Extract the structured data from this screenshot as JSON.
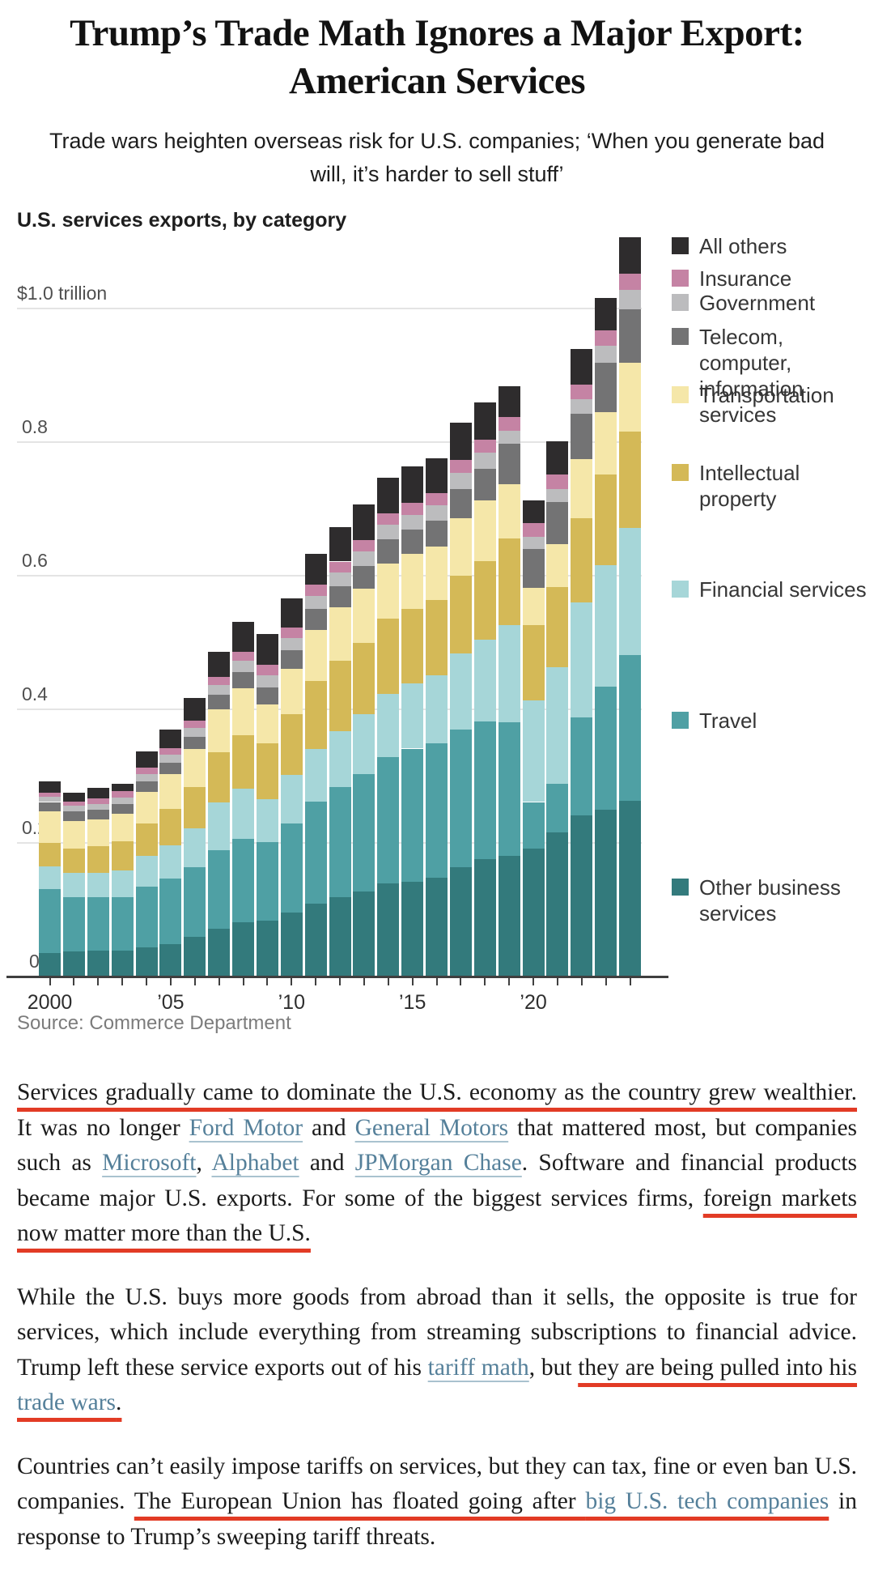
{
  "article": {
    "headline": "Trump’s Trade Math Ignores a Major Export: American Services",
    "subheadline": "Trade wars heighten overseas risk for U.S. companies; ‘When you generate bad will, it’s harder to sell stuff’",
    "paragraphs": [
      {
        "segments": [
          {
            "type": "red",
            "text": "Services gradually came to dominate the U.S. economy as the country grew wealthier."
          },
          {
            "type": "plain",
            "text": " It was no longer "
          },
          {
            "type": "link",
            "text": "Ford Motor"
          },
          {
            "type": "plain",
            "text": " and "
          },
          {
            "type": "link",
            "text": "General Motors"
          },
          {
            "type": "plain",
            "text": " that mattered most, but companies such as "
          },
          {
            "type": "link",
            "text": "Microsoft"
          },
          {
            "type": "plain",
            "text": ", "
          },
          {
            "type": "link",
            "text": "Alphabet"
          },
          {
            "type": "plain",
            "text": " and "
          },
          {
            "type": "link",
            "text": "JPMorgan Chase"
          },
          {
            "type": "plain",
            "text": ". Software and financial products became major U.S. exports. For some of the biggest services firms, "
          },
          {
            "type": "red",
            "text": "foreign markets now matter more than the U.S."
          }
        ]
      },
      {
        "segments": [
          {
            "type": "plain",
            "text": "While the U.S. buys more goods from abroad than it sells, the opposite is true for services, which include everything from streaming subscriptions to financial advice. Trump left these service exports out of his "
          },
          {
            "type": "link",
            "text": "tariff math"
          },
          {
            "type": "plain",
            "text": ", but "
          },
          {
            "type": "red",
            "text": "they are being pulled into his "
          },
          {
            "type": "red_link",
            "text": "trade wars"
          },
          {
            "type": "red",
            "text": "."
          }
        ]
      },
      {
        "segments": [
          {
            "type": "plain",
            "text": "Countries can’t easily impose tariffs on services, but they can tax, fine or even ban U.S. companies. "
          },
          {
            "type": "red",
            "text": "The European Union has floated going after "
          },
          {
            "type": "red_link",
            "text": "big U.S. tech companies"
          },
          {
            "type": "plain",
            "text": " in response to Trump’s sweeping tariff threats."
          }
        ]
      }
    ]
  },
  "chart_data": {
    "type": "bar",
    "stacked": true,
    "title": "U.S. services exports, by category",
    "source": "Source: Commerce Department",
    "unit": "trillions of U.S. dollars",
    "ylim": [
      0,
      1.15
    ],
    "grid": true,
    "legend_position": "right",
    "y_ticks": [
      {
        "v": 1.0,
        "label": "$1.0 trillion"
      },
      {
        "v": 0.8,
        "label": "0.8"
      },
      {
        "v": 0.6,
        "label": "0.6"
      },
      {
        "v": 0.4,
        "label": "0.4"
      },
      {
        "v": 0.2,
        "label": "0.2"
      },
      {
        "v": 0.0,
        "label": "0"
      }
    ],
    "x": [
      2000,
      2001,
      2002,
      2003,
      2004,
      2005,
      2006,
      2007,
      2008,
      2009,
      2010,
      2011,
      2012,
      2013,
      2014,
      2015,
      2016,
      2017,
      2018,
      2019,
      2020,
      2021,
      2022,
      2023,
      2024
    ],
    "x_tick_labels": [
      {
        "index": 0,
        "label": "2000"
      },
      {
        "index": 5,
        "label": "’05"
      },
      {
        "index": 10,
        "label": "’10"
      },
      {
        "index": 15,
        "label": "’15"
      },
      {
        "index": 20,
        "label": "’20"
      }
    ],
    "series": [
      {
        "name": "Other business services",
        "color": "#337a7c",
        "values": [
          0.034,
          0.036,
          0.037,
          0.038,
          0.043,
          0.047,
          0.058,
          0.07,
          0.08,
          0.082,
          0.095,
          0.108,
          0.118,
          0.126,
          0.138,
          0.141,
          0.147,
          0.162,
          0.175,
          0.18,
          0.19,
          0.215,
          0.24,
          0.248,
          0.262
        ]
      },
      {
        "name": "Travel",
        "color": "#4fa0a4",
        "values": [
          0.096,
          0.082,
          0.08,
          0.08,
          0.09,
          0.098,
          0.105,
          0.118,
          0.125,
          0.118,
          0.133,
          0.153,
          0.165,
          0.176,
          0.189,
          0.199,
          0.201,
          0.207,
          0.206,
          0.2,
          0.07,
          0.072,
          0.147,
          0.185,
          0.218
        ]
      },
      {
        "name": "Financial services",
        "color": "#a6d6d8",
        "values": [
          0.034,
          0.036,
          0.037,
          0.04,
          0.046,
          0.05,
          0.058,
          0.072,
          0.075,
          0.064,
          0.073,
          0.078,
          0.083,
          0.089,
          0.095,
          0.098,
          0.102,
          0.114,
          0.122,
          0.145,
          0.152,
          0.175,
          0.172,
          0.182,
          0.19
        ]
      },
      {
        "name": "Intellectual property",
        "color": "#d4b957",
        "values": [
          0.035,
          0.036,
          0.04,
          0.043,
          0.049,
          0.055,
          0.062,
          0.075,
          0.08,
          0.084,
          0.091,
          0.102,
          0.106,
          0.107,
          0.112,
          0.111,
          0.112,
          0.116,
          0.118,
          0.13,
          0.113,
          0.12,
          0.126,
          0.135,
          0.145
        ]
      },
      {
        "name": "Transportation",
        "color": "#f5e7a9",
        "values": [
          0.047,
          0.042,
          0.04,
          0.041,
          0.047,
          0.052,
          0.056,
          0.064,
          0.07,
          0.058,
          0.067,
          0.077,
          0.079,
          0.081,
          0.083,
          0.082,
          0.08,
          0.086,
          0.09,
          0.081,
          0.056,
          0.064,
          0.088,
          0.094,
          0.103
        ]
      },
      {
        "name": "Telecom, computer, information services",
        "color": "#737374",
        "values": [
          0.014,
          0.014,
          0.014,
          0.015,
          0.016,
          0.017,
          0.019,
          0.022,
          0.025,
          0.026,
          0.028,
          0.031,
          0.032,
          0.034,
          0.036,
          0.037,
          0.039,
          0.044,
          0.048,
          0.06,
          0.058,
          0.063,
          0.068,
          0.073,
          0.079
        ]
      },
      {
        "name": "Government",
        "color": "#bcbcbe",
        "values": [
          0.008,
          0.008,
          0.009,
          0.01,
          0.011,
          0.012,
          0.013,
          0.014,
          0.016,
          0.018,
          0.019,
          0.02,
          0.021,
          0.022,
          0.022,
          0.022,
          0.023,
          0.024,
          0.024,
          0.02,
          0.018,
          0.019,
          0.022,
          0.026,
          0.03
        ]
      },
      {
        "name": "Insurance",
        "color": "#c583a4",
        "values": [
          0.006,
          0.007,
          0.008,
          0.009,
          0.01,
          0.01,
          0.011,
          0.012,
          0.014,
          0.015,
          0.015,
          0.016,
          0.016,
          0.017,
          0.017,
          0.018,
          0.018,
          0.019,
          0.02,
          0.02,
          0.021,
          0.022,
          0.022,
          0.023,
          0.024
        ]
      },
      {
        "name": "All others",
        "color": "#2e2c2d",
        "values": [
          0.017,
          0.013,
          0.016,
          0.011,
          0.024,
          0.027,
          0.034,
          0.038,
          0.045,
          0.047,
          0.044,
          0.047,
          0.052,
          0.054,
          0.054,
          0.054,
          0.053,
          0.056,
          0.055,
          0.046,
          0.034,
          0.05,
          0.053,
          0.049,
          0.055
        ]
      }
    ],
    "legend": [
      {
        "label": "All others",
        "color": "#2e2c2d"
      },
      {
        "label": "Insurance",
        "color": "#c583a4"
      },
      {
        "label": "Government",
        "color": "#bcbcbe"
      },
      {
        "label": "Telecom, computer,\ninformation services",
        "color": "#737374"
      },
      {
        "label": "Transportation",
        "color": "#f5e7a9"
      },
      {
        "label": "Intellectual property",
        "color": "#d4b957"
      },
      {
        "label": "Financial services",
        "color": "#a6d6d8"
      },
      {
        "label": "Travel",
        "color": "#4fa0a4"
      },
      {
        "label": "Other business\nservices",
        "color": "#337a7c"
      }
    ]
  }
}
